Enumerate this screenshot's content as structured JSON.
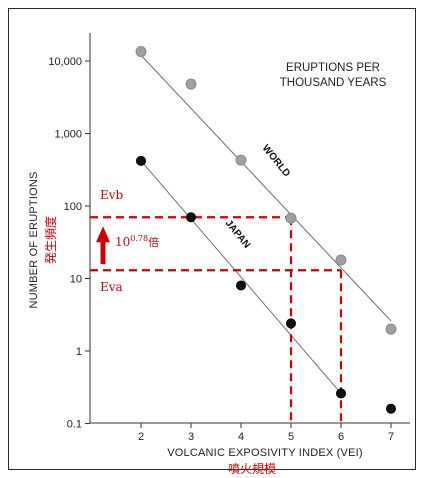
{
  "chart_data": {
    "type": "scatter",
    "title_lines": [
      "ERUPTIONS PER",
      "THOUSAND YEARS"
    ],
    "xlabel": "VOLCANIC EXPOSIVITY INDEX (VEI)",
    "xlabel_jp": "噴火規模",
    "ylabel": "NUMBER OF ERUPTIONS",
    "ylabel_jp": "発生頻度",
    "x_ticks": [
      "2",
      "3",
      "4",
      "5",
      "6",
      "7"
    ],
    "xlim": [
      1,
      7.3
    ],
    "y_scale": "log",
    "ylim": [
      0.1,
      20000
    ],
    "y_ticks": [
      {
        "value": 10000,
        "label": "10,000"
      },
      {
        "value": 1000,
        "label": "1,000"
      },
      {
        "value": 100,
        "label": "100"
      },
      {
        "value": 10,
        "label": "10"
      },
      {
        "value": 1,
        "label": "1"
      },
      {
        "value": 0.1,
        "label": "0.1"
      }
    ],
    "series": [
      {
        "name": "WORLD",
        "color": "#a0a0a0",
        "x": [
          2,
          3,
          4,
          5,
          6,
          7
        ],
        "y": [
          13500,
          4800,
          430,
          68,
          18,
          2
        ],
        "fit": [
          [
            2,
            12000
          ],
          [
            7,
            2.6
          ]
        ]
      },
      {
        "name": "JAPAN",
        "color": "#111111",
        "x": [
          2,
          3,
          4,
          5,
          6,
          7
        ],
        "y": [
          420,
          70,
          8,
          2.4,
          0.26,
          0.16
        ],
        "fit": [
          [
            2,
            420
          ],
          [
            6,
            0.26
          ]
        ]
      }
    ],
    "annotations": {
      "evb_label": "Evb",
      "eva_label": "Eva",
      "evb_value": 70,
      "eva_value": 13,
      "evb_x": 5,
      "eva_x": 6,
      "ratio_base": "10",
      "ratio_exp": "0.78",
      "ratio_suffix": "倍",
      "color": "#d40000"
    },
    "grid": false,
    "legend": "none"
  }
}
